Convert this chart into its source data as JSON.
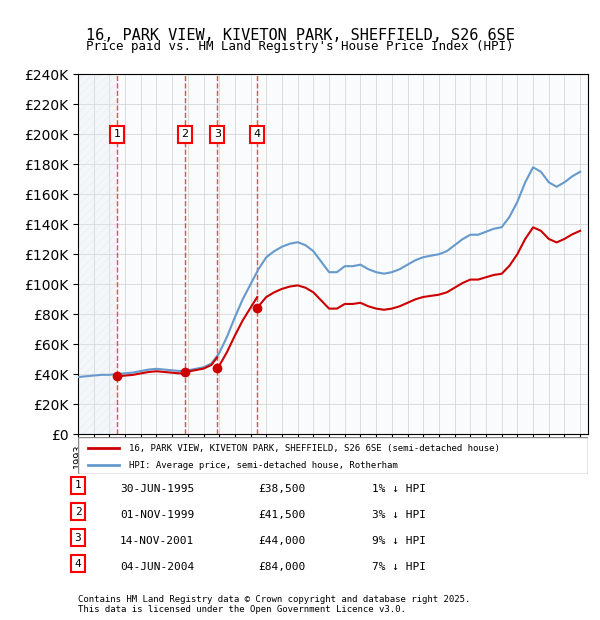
{
  "title_line1": "16, PARK VIEW, KIVETON PARK, SHEFFIELD, S26 6SE",
  "title_line2": "Price paid vs. HM Land Registry's House Price Index (HPI)",
  "transactions": [
    {
      "num": 1,
      "date": "1995-06-30",
      "price": 38500
    },
    {
      "num": 2,
      "date": "1999-11-01",
      "price": 41500
    },
    {
      "num": 3,
      "date": "2001-11-14",
      "price": 44000
    },
    {
      "num": 4,
      "date": "2004-06-04",
      "price": 84000
    }
  ],
  "table_rows": [
    {
      "num": 1,
      "date_str": "30-JUN-1995",
      "price_str": "£38,500",
      "hpi_str": "1% ↓ HPI"
    },
    {
      "num": 2,
      "date_str": "01-NOV-1999",
      "price_str": "£41,500",
      "hpi_str": "3% ↓ HPI"
    },
    {
      "num": 3,
      "date_str": "14-NOV-2001",
      "price_str": "£44,000",
      "hpi_str": "9% ↓ HPI"
    },
    {
      "num": 4,
      "date_str": "04-JUN-2004",
      "price_str": "£84,000",
      "hpi_str": "7% ↓ HPI"
    }
  ],
  "legend_line1": "16, PARK VIEW, KIVETON PARK, SHEFFIELD, S26 6SE (semi-detached house)",
  "legend_line2": "HPI: Average price, semi-detached house, Rotherham",
  "footer_line1": "Contains HM Land Registry data © Crown copyright and database right 2025.",
  "footer_line2": "This data is licensed under the Open Government Licence v3.0.",
  "hpi_color": "#6699cc",
  "price_color": "#cc0000",
  "ylim": [
    0,
    240000
  ],
  "ytick_step": 20000,
  "background_hatch_color": "#dce6f1",
  "sold_region_color": "#dce6f1"
}
